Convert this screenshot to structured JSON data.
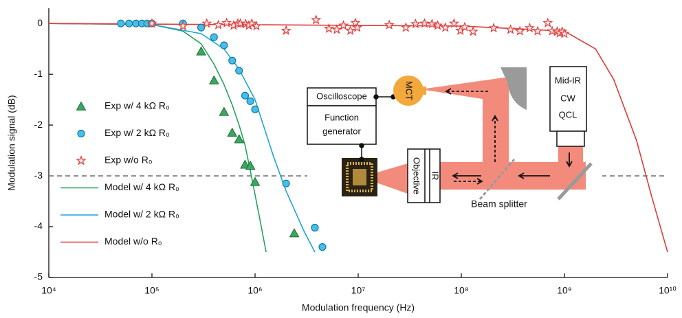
{
  "chart_data": {
    "type": "scatter",
    "x_label": "Modulation frequency (Hz)",
    "y_label": "Modulation signal (dB)",
    "x_scale": "log",
    "xlim": [
      10000,
      10000000000
    ],
    "ylim": [
      -5,
      0.3
    ],
    "xticks": [
      {
        "value": 10000,
        "label": "10⁴"
      },
      {
        "value": 100000,
        "label": "10⁵"
      },
      {
        "value": 1000000,
        "label": "10⁶"
      },
      {
        "value": 10000000,
        "label": "10⁷"
      },
      {
        "value": 100000000,
        "label": "10⁸"
      },
      {
        "value": 1000000000,
        "label": "10⁹"
      },
      {
        "value": 10000000000,
        "label": "10¹⁰"
      }
    ],
    "yticks": [
      0,
      -1,
      -2,
      -3,
      -4,
      -5
    ],
    "reference_value": -3,
    "legend": "left",
    "series": [
      {
        "name": "Exp w/ 4 kΩ R₀",
        "type": "scatter",
        "marker": "triangle",
        "color": "#3aa85e",
        "x": [
          300000,
          400000,
          500000,
          600000,
          700000,
          800000,
          900000,
          1000000,
          2400000
        ],
        "values": [
          -0.55,
          -1.12,
          -1.74,
          -2.15,
          -2.28,
          -2.78,
          -2.8,
          -3.12,
          -4.13
        ]
      },
      {
        "name": "Exp w/ 2 kΩ R₀",
        "type": "scatter",
        "marker": "circle",
        "color": "#44c0e8",
        "x": [
          50000,
          60000,
          70000,
          80000,
          90000,
          100000,
          200000,
          300000,
          400000,
          500000,
          600000,
          700000,
          800000,
          900000,
          1000000,
          2000000,
          3800000,
          4500000
        ],
        "values": [
          0,
          0,
          0,
          0,
          0,
          0,
          0,
          -0.08,
          -0.27,
          -0.43,
          -0.73,
          -0.93,
          -1.42,
          -1.53,
          -1.69,
          -3.15,
          -4.02,
          -4.4
        ]
      },
      {
        "name": "Exp w/o R₀",
        "type": "scatter",
        "marker": "star",
        "color": "#e03a3a",
        "x": [
          100000,
          200000,
          340000,
          440000,
          530000,
          620000,
          680000,
          720000,
          810000,
          870000,
          930000,
          1030000,
          2000000,
          3900000,
          5200000,
          6200000,
          7200000,
          8400000,
          9400000,
          9800000,
          20000000,
          29000000,
          36000000,
          44000000,
          52000000,
          59000000,
          70000000,
          85000000,
          98000000,
          108000000,
          130000000,
          206000000,
          300000000,
          370000000,
          460000000,
          550000000,
          690000000,
          760000000,
          850000000,
          900000000,
          950000000,
          1000000000
        ],
        "values": [
          0,
          -0.05,
          0,
          -0.03,
          0.01,
          -0.04,
          0,
          0,
          -0.01,
          -0.04,
          0,
          -0.05,
          -0.14,
          0.07,
          -0.1,
          -0.12,
          -0.04,
          -0.14,
          0.01,
          -0.08,
          -0.03,
          -0.08,
          -0.01,
          0,
          -0.01,
          -0.04,
          -0.08,
          0,
          -0.14,
          -0.07,
          -0.16,
          -0.09,
          -0.12,
          -0.15,
          -0.09,
          -0.15,
          0.01,
          -0.15,
          -0.16,
          -0.19,
          -0.16,
          -0.2
        ]
      },
      {
        "name": "Model w/ 4 kΩ R₀",
        "type": "line",
        "color": "#22a55a",
        "x": [
          10000,
          100000,
          200000,
          300000,
          400000,
          500000,
          600000,
          700000,
          800000,
          900000,
          1100000,
          1280000
        ],
        "values": [
          0,
          -0.02,
          -0.15,
          -0.4,
          -0.8,
          -1.2,
          -1.6,
          -2.0,
          -2.4,
          -2.9,
          -3.8,
          -4.5
        ]
      },
      {
        "name": "Model w/ 2 kΩ R₀",
        "type": "line",
        "color": "#1aa6d8",
        "x": [
          10000,
          100000,
          300000,
          500000,
          700000,
          1000000,
          1500000,
          2000000,
          3000000,
          3800000
        ],
        "values": [
          0,
          -0.02,
          -0.2,
          -0.5,
          -0.9,
          -1.5,
          -2.6,
          -3.3,
          -4.1,
          -4.5
        ]
      },
      {
        "name": "Model w/o R₀",
        "type": "line",
        "color": "#e03a3a",
        "x": [
          10000,
          100000000,
          1000000000,
          2000000000,
          3000000000,
          5000000000,
          7000000000,
          10000000000
        ],
        "values": [
          0,
          -0.05,
          -0.15,
          -0.5,
          -1.1,
          -2.3,
          -3.4,
          -4.5
        ]
      }
    ]
  },
  "inset": {
    "oscilloscope": "Oscilloscope",
    "function_generator": [
      "Function",
      "generator"
    ],
    "detector": "MCT",
    "objective": [
      "IR",
      "Objective"
    ],
    "laser": [
      "Mid-IR",
      "CW",
      "QCL"
    ],
    "beam_splitter": "Beam splitter"
  }
}
